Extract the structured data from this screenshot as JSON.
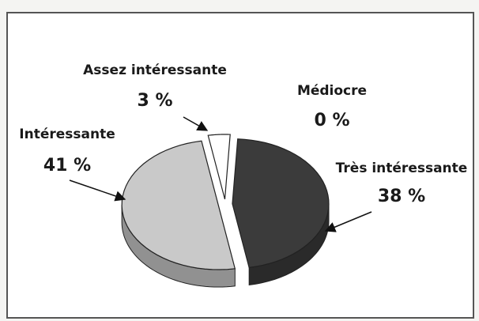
{
  "chart_data": {
    "type": "pie",
    "categories": [
      "Intéressante",
      "Assez intéressante",
      "Médiocre",
      "Très intéressante"
    ],
    "values": [
      41,
      3,
      0,
      38
    ],
    "value_labels": [
      "41 %",
      "3 %",
      "0 %",
      "38 %"
    ],
    "colors": [
      "#c9c9c9",
      "#ffffff",
      "#ffffff",
      "#3b3b3b"
    ]
  }
}
